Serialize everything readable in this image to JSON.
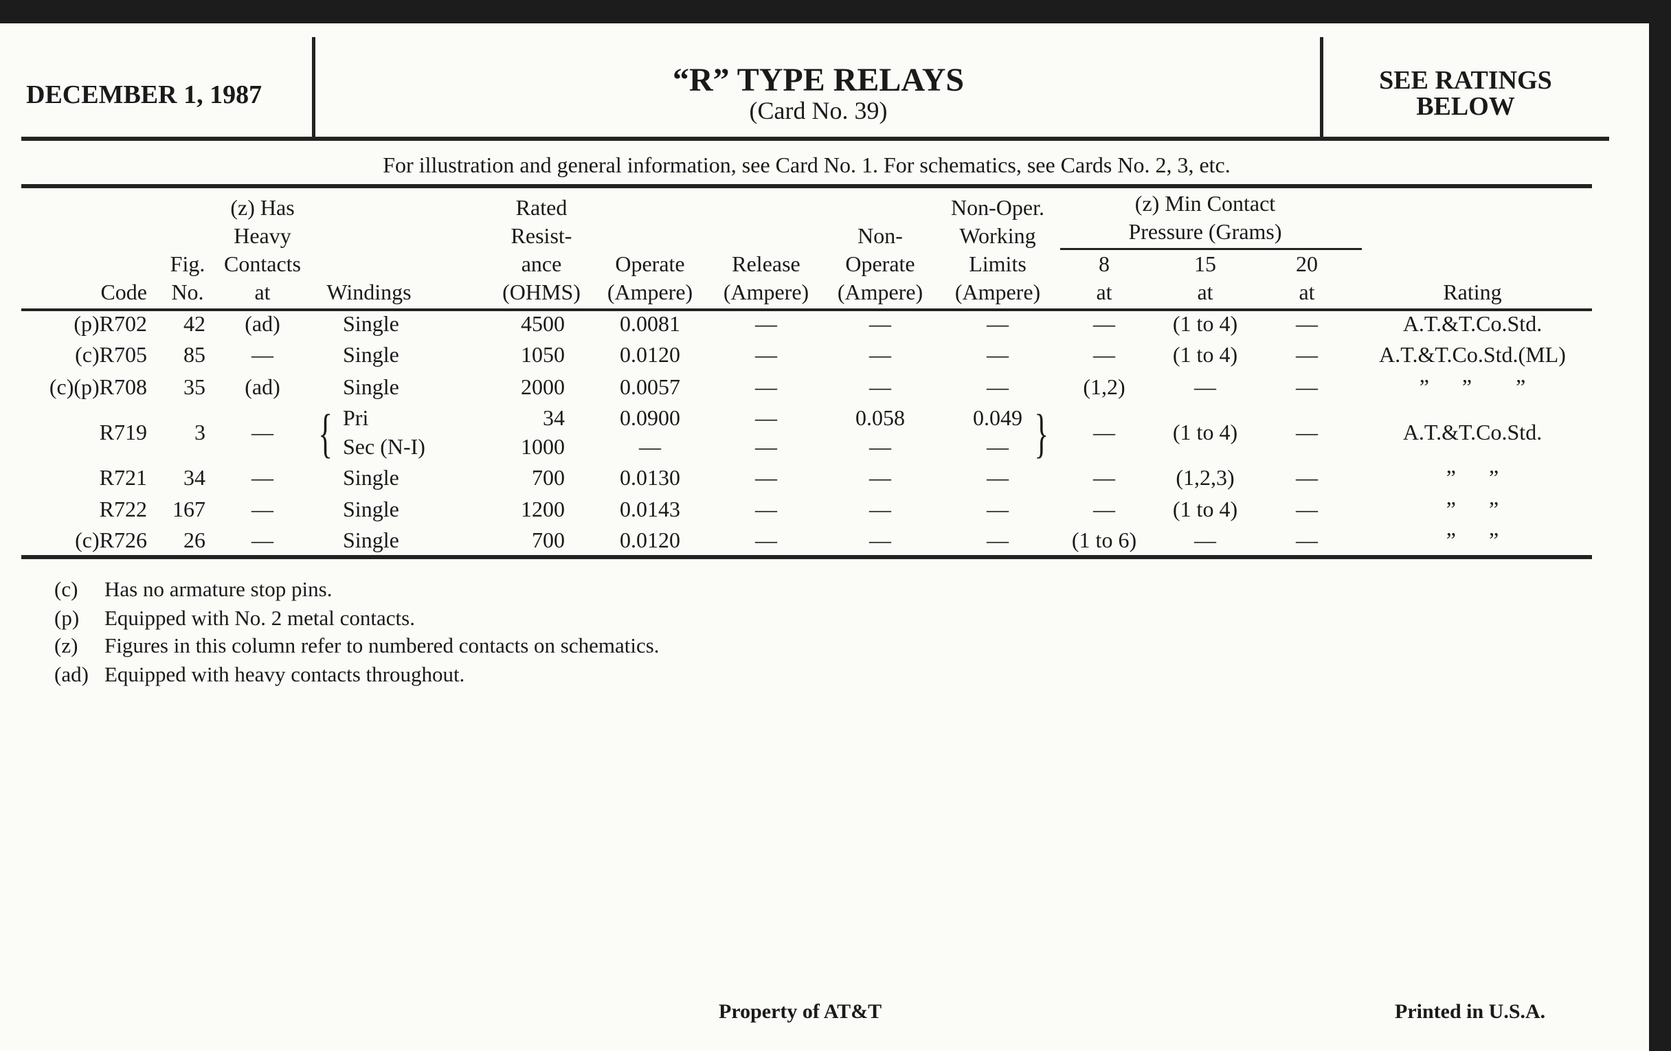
{
  "header": {
    "date": "DECEMBER 1, 1987",
    "title": "“R” TYPE RELAYS",
    "subtitle": "(Card No. 39)",
    "ratings_note": "SEE RATINGS\nBELOW"
  },
  "info_line": "For illustration and general information, see Card No. 1. For schematics, see Cards No. 2, 3, etc.",
  "columns": {
    "code": "Code",
    "fig": "Fig.\nNo.",
    "contacts": "(z) Has\nHeavy\nContacts\nat",
    "windings": "Windings",
    "ohms": "Rated\nResist-\nance\n(OHMS)",
    "operate": "Operate\n(Ampere)",
    "release": "Release\n(Ampere)",
    "non_operate": "Non-\nOperate\n(Ampere)",
    "working": "Non-Oper.\nWorking\nLimits\n(Ampere)",
    "pressure_group": "(z) Min Contact\nPressure (Grams)",
    "p8": "8\nat",
    "p15": "15\nat",
    "p20": "20\nat",
    "rating": "Rating"
  },
  "rows": [
    {
      "code": "(p)R702",
      "fig": "42",
      "contacts": "(ad)",
      "windings": "Single",
      "ohms": "4500",
      "operate": "0.0081",
      "release": "—",
      "non_operate": "—",
      "working": "—",
      "p8": "—",
      "p15": "(1 to 4)",
      "p20": "—",
      "rating": "A.T.&T.Co.Std."
    },
    {
      "code": "(c)R705",
      "fig": "85",
      "contacts": "—",
      "windings": "Single",
      "ohms": "1050",
      "operate": "0.0120",
      "release": "—",
      "non_operate": "—",
      "working": "—",
      "p8": "—",
      "p15": "(1 to 4)",
      "p20": "—",
      "rating": "A.T.&T.Co.Std.(ML)"
    },
    {
      "code": "(c)(p)R708",
      "fig": "35",
      "contacts": "(ad)",
      "windings": "Single",
      "ohms": "2000",
      "operate": "0.0057",
      "release": "—",
      "non_operate": "—",
      "working": "—",
      "p8": "(1,2)",
      "p15": "—",
      "p20": "—",
      "rating": "”      ”        ”"
    },
    {
      "code": "R719",
      "fig": "3",
      "contacts": "—",
      "windings": "Pri",
      "ohms": "34",
      "operate": "0.0900",
      "release": "—",
      "non_operate": "0.058",
      "working": "0.049",
      "p8": "—",
      "p15": "(1 to 4)",
      "p20": "—",
      "rating": "A.T.&T.Co.Std.",
      "secondary": {
        "windings": "Sec (N-I)",
        "ohms": "1000",
        "operate": "—",
        "release": "—",
        "non_operate": "—",
        "working": "—"
      }
    },
    {
      "code": "R721",
      "fig": "34",
      "contacts": "—",
      "windings": "Single",
      "ohms": "700",
      "operate": "0.0130",
      "release": "—",
      "non_operate": "—",
      "working": "—",
      "p8": "—",
      "p15": "(1,2,3)",
      "p20": "—",
      "rating": "”      ”"
    },
    {
      "code": "R722",
      "fig": "167",
      "contacts": "—",
      "windings": "Single",
      "ohms": "1200",
      "operate": "0.0143",
      "release": "—",
      "non_operate": "—",
      "working": "—",
      "p8": "—",
      "p15": "(1 to 4)",
      "p20": "—",
      "rating": "”      ”"
    },
    {
      "code": "(c)R726",
      "fig": "26",
      "contacts": "—",
      "windings": "Single",
      "ohms": "700",
      "operate": "0.0120",
      "release": "—",
      "non_operate": "—",
      "working": "—",
      "p8": "(1 to 6)",
      "p15": "—",
      "p20": "—",
      "rating": "”      ”"
    }
  ],
  "footnotes": [
    {
      "mark": "(c)",
      "text": "Has no armature stop pins."
    },
    {
      "mark": "(p)",
      "text": "Equipped with No. 2 metal contacts."
    },
    {
      "mark": "(z)",
      "text": "Figures in this column refer to numbered contacts on schematics."
    },
    {
      "mark": "(ad)",
      "text": "Equipped with heavy contacts throughout."
    }
  ],
  "footer": {
    "property": "Property of AT&T",
    "printed": "Printed in U.S.A."
  }
}
